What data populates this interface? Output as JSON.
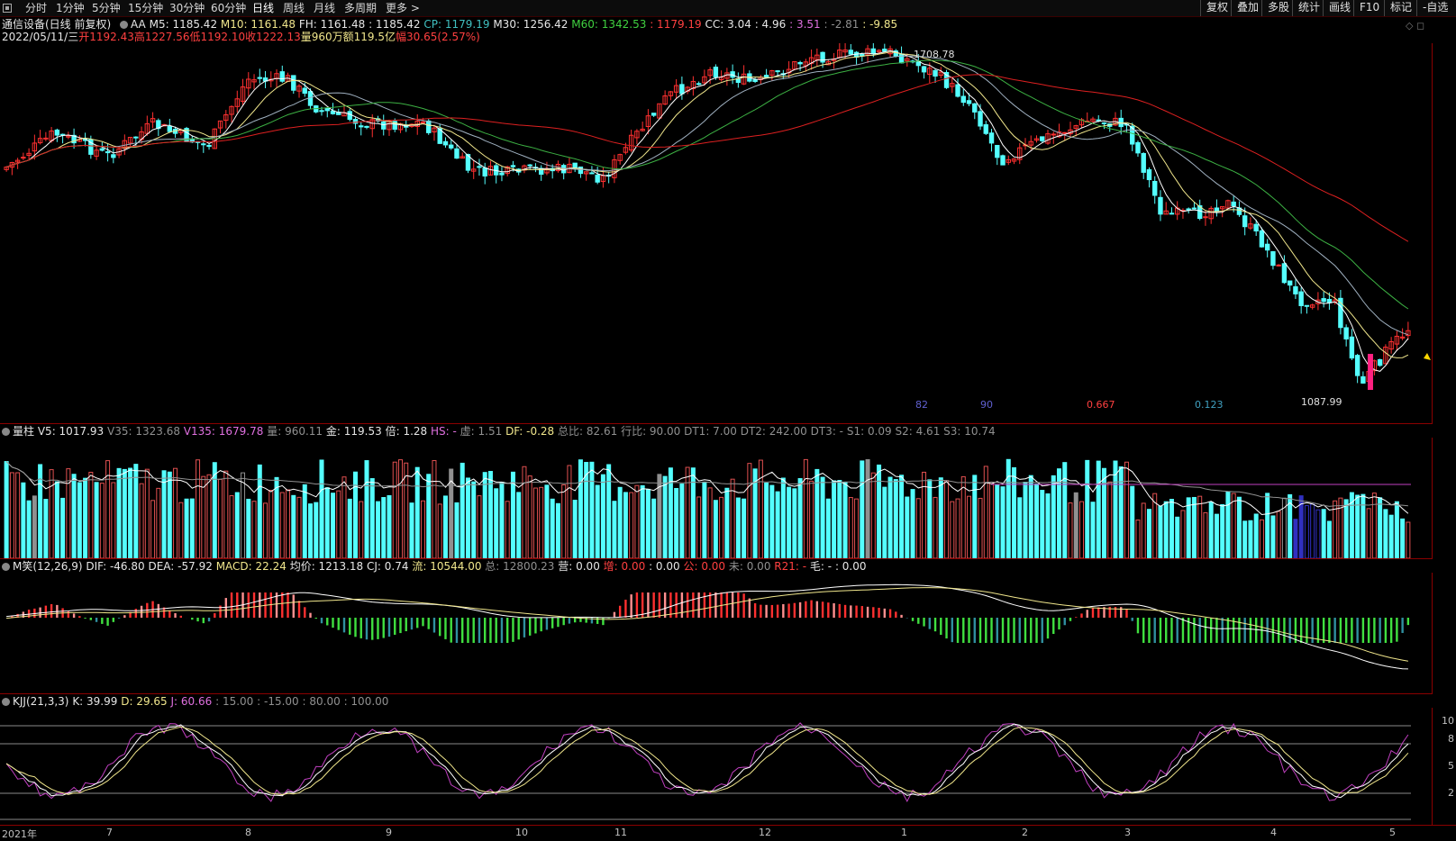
{
  "toolbar": {
    "items": [
      "分时",
      "1分钟",
      "5分钟",
      "15分钟",
      "30分钟",
      "60分钟",
      "日线",
      "周线",
      "月线",
      "多周期",
      "更多 >"
    ],
    "active": "日线",
    "right_items": [
      "复权",
      "叠加",
      "多股",
      "统计",
      "画线",
      "F10",
      "标记",
      "-自选"
    ]
  },
  "stock": {
    "name": "通信设备(日线 前复权)",
    "indicator_name": "AA",
    "m5": "M5: 1185.42",
    "m10": "M10: 1161.48",
    "fh": "FH: 1161.48",
    "fh2": ": 1185.42",
    "cp": "CP: 1179.19",
    "m30": "M30: 1256.42",
    "m60": "M60: 1342.53",
    "m60b": ": 1179.19",
    "cc": "CC: 3.04",
    "cc2": ": 4.96",
    "cc3": ": 3.51",
    "cc4": ": -2.81",
    "cc5": ": -9.85"
  },
  "day_info": {
    "date": "2022/05/11/三",
    "open": "开1192.43",
    "high": "高1227.56",
    "low": "低1192.10",
    "close": "收1222.13",
    "vol": "量960万",
    "amount": "额119.5亿",
    "range": "幅30.65(2.57%)"
  },
  "price_annotations": {
    "high_label": "1708.78",
    "low_label": "1087.99",
    "n1": "82",
    "n2": "90",
    "n3": "0.667",
    "n4": "0.123"
  },
  "volume_header": {
    "name": "量柱",
    "v5": "V5: 1017.93",
    "v35": "V35: 1323.68",
    "v135": "V135: 1679.78",
    "liang": "量: 960.11",
    "jin": "金: 119.53",
    "bei": "倍: 1.28",
    "hs": "HS: -",
    "xu": "虚: 1.51",
    "df": "DF: -0.28",
    "zongbi": "总比: 82.61",
    "hangbi": "行比: 90.00",
    "dt1": "DT1: 7.00",
    "dt2": "DT2: 242.00",
    "dt3": "DT3: -",
    "s1": "S1: 0.09",
    "s2": "S2: 4.61",
    "s3": "S3: 10.74"
  },
  "macd_header": {
    "name": "M笑(12,26,9)",
    "dif": "DIF: -46.80",
    "dea": "DEA: -57.92",
    "macd": "MACD: 22.24",
    "junjia": "均价: 1213.18",
    "cj": "CJ: 0.74",
    "liu": "流: 10544.00",
    "zong": "总: 12800.23",
    "ying": "营: 0.00",
    "zeng": "增: 0.00",
    "zeng2": ": 0.00",
    "gong": "公: 0.00",
    "wei": "未: 0.00",
    "r21": "R21: -",
    "mao": "毛: -",
    "mao2": ": 0.00"
  },
  "kdj_header": {
    "name": "KJJ(21,3,3)",
    "k": "K: 39.99",
    "d": "D: 29.65",
    "j": "J: 60.66",
    "l1": ": 15.00",
    "l2": ": -15.00",
    "l3": ": 80.00",
    "l4": ": 100.00"
  },
  "kdj_axis": [
    "10",
    "8",
    "5",
    "2"
  ],
  "date_axis": [
    "2021年",
    "7",
    "8",
    "9",
    "10",
    "11",
    "12",
    "1",
    "2",
    "3",
    "4",
    "5"
  ],
  "colors": {
    "up": "#ff3030",
    "down": "#54ffff",
    "ma5": "#ffffff",
    "ma10": "#f0e68c",
    "ma30": "#3cb043",
    "ma60": "#dd2020",
    "kdj_j": "#c040c0",
    "separator": "#8b0000"
  }
}
